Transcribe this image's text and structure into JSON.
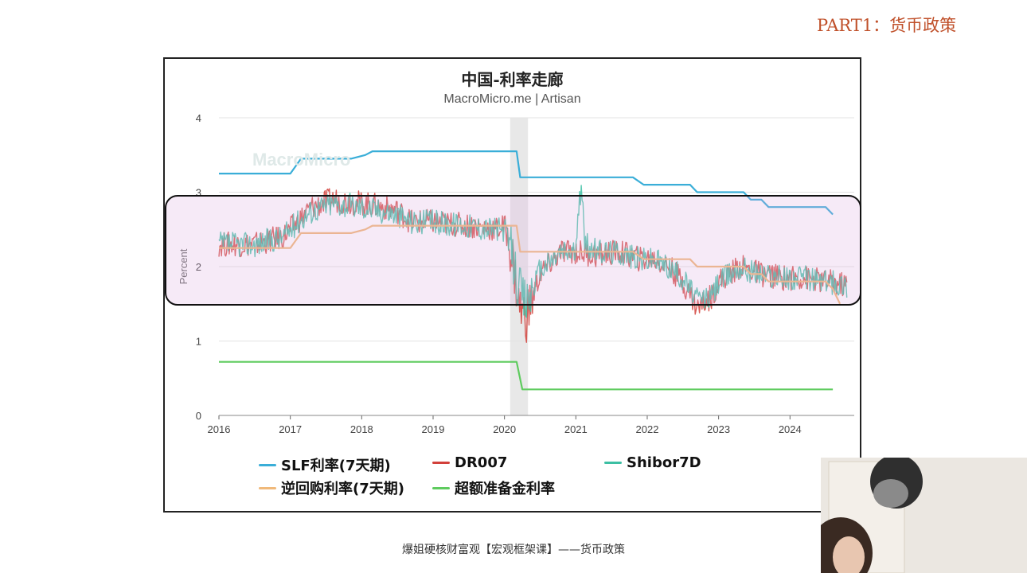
{
  "slide": {
    "part_title": "PART1：货币政策",
    "footer": "爆姐硬核财富观【宏观框架课】——货币政策"
  },
  "watermark": "MacroMicro",
  "chart_data": {
    "type": "line",
    "title": "中国-利率走廊",
    "subtitle": "MacroMicro.me | Artisan",
    "ylabel": "Percent",
    "xlabel": "",
    "ylim": [
      0,
      4
    ],
    "xlim": [
      2016,
      2024.9
    ],
    "y_ticks": [
      "0",
      "1",
      "2",
      "3",
      "4"
    ],
    "x_ticks": [
      "2016",
      "2017",
      "2018",
      "2019",
      "2020",
      "2021",
      "2022",
      "2023",
      "2024"
    ],
    "grid": true,
    "legend_position": "bottom",
    "shaded_period": [
      2020.08,
      2020.33
    ],
    "series": [
      {
        "name": "SLF利率(7天期)",
        "color": "#3aaed8",
        "kind": "step",
        "x": [
          2016.0,
          2017.0,
          2017.15,
          2017.85,
          2018.05,
          2018.15,
          2020.17,
          2020.22,
          2021.8,
          2021.95,
          2022.6,
          2022.7,
          2023.35,
          2023.45,
          2023.6,
          2023.7,
          2024.5,
          2024.6
        ],
        "values": [
          3.25,
          3.25,
          3.45,
          3.45,
          3.5,
          3.55,
          3.55,
          3.2,
          3.2,
          3.1,
          3.1,
          3.0,
          3.0,
          2.9,
          2.9,
          2.8,
          2.8,
          2.7
        ]
      },
      {
        "name": "DR007",
        "color": "#d2403a",
        "kind": "noisy",
        "x": [
          2016.0,
          2016.5,
          2016.9,
          2017.1,
          2017.3,
          2017.6,
          2018.0,
          2018.3,
          2018.5,
          2018.7,
          2019.0,
          2019.5,
          2019.9,
          2020.0,
          2020.1,
          2020.2,
          2020.3,
          2020.5,
          2020.8,
          2021.0,
          2021.3,
          2021.6,
          2021.9,
          2022.1,
          2022.3,
          2022.5,
          2022.7,
          2022.9,
          2023.0,
          2023.3,
          2023.6,
          2023.9,
          2024.2,
          2024.5,
          2024.8
        ],
        "values": [
          2.3,
          2.3,
          2.4,
          2.6,
          2.8,
          2.9,
          2.85,
          2.8,
          2.75,
          2.6,
          2.6,
          2.55,
          2.5,
          2.55,
          2.2,
          1.5,
          1.3,
          1.9,
          2.2,
          2.2,
          2.15,
          2.2,
          2.1,
          2.1,
          2.0,
          1.8,
          1.45,
          1.6,
          1.8,
          2.0,
          1.9,
          1.85,
          1.85,
          1.8,
          1.75
        ]
      },
      {
        "name": "Shibor7D",
        "color": "#3cbfa3",
        "kind": "noisy",
        "x": [
          2016.0,
          2016.5,
          2016.9,
          2017.1,
          2017.3,
          2017.6,
          2018.0,
          2018.3,
          2018.5,
          2018.7,
          2019.0,
          2019.5,
          2019.9,
          2020.0,
          2020.1,
          2020.2,
          2020.3,
          2020.5,
          2020.8,
          2021.0,
          2021.08,
          2021.12,
          2021.3,
          2021.6,
          2021.9,
          2022.1,
          2022.3,
          2022.5,
          2022.7,
          2022.9,
          2023.0,
          2023.3,
          2023.6,
          2023.9,
          2024.2,
          2024.5,
          2024.8
        ],
        "values": [
          2.3,
          2.3,
          2.4,
          2.6,
          2.75,
          2.85,
          2.8,
          2.75,
          2.7,
          2.6,
          2.6,
          2.55,
          2.5,
          2.5,
          2.2,
          1.7,
          1.5,
          1.95,
          2.2,
          2.2,
          3.2,
          2.3,
          2.2,
          2.2,
          2.1,
          2.1,
          2.0,
          1.85,
          1.55,
          1.6,
          1.8,
          2.0,
          1.9,
          1.85,
          1.85,
          1.8,
          1.75
        ]
      },
      {
        "name": "逆回购利率(7天期)",
        "color": "#f0b97a",
        "kind": "step",
        "x": [
          2016.0,
          2017.0,
          2017.15,
          2017.85,
          2018.05,
          2018.15,
          2020.17,
          2020.22,
          2021.8,
          2021.95,
          2022.6,
          2022.7,
          2023.35,
          2023.45,
          2023.6,
          2023.7,
          2024.5,
          2024.6,
          2024.7
        ],
        "values": [
          2.25,
          2.25,
          2.45,
          2.45,
          2.5,
          2.55,
          2.55,
          2.2,
          2.2,
          2.1,
          2.1,
          2.0,
          2.0,
          1.9,
          1.9,
          1.8,
          1.8,
          1.7,
          1.5
        ]
      },
      {
        "name": "超额准备金利率",
        "color": "#5ecb5e",
        "kind": "step",
        "x": [
          2016.0,
          2020.17,
          2020.25,
          2024.6
        ],
        "values": [
          0.72,
          0.72,
          0.35,
          0.35
        ]
      }
    ]
  }
}
